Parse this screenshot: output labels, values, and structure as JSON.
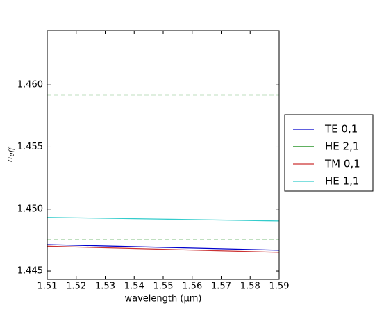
{
  "chart_data": {
    "type": "line",
    "xlabel": "wavelength (μm)",
    "ylabel": {
      "base": "n",
      "sub": "eff"
    },
    "x": [
      1.51,
      1.55,
      1.59
    ],
    "series": [
      {
        "name": "TE 0,1",
        "color": "#0000cc",
        "values": [
          1.44713,
          1.44691,
          1.44669
        ]
      },
      {
        "name": "HE 2,1",
        "color": "#008000",
        "values": [
          null,
          null,
          null
        ]
      },
      {
        "name": "TM 0,1",
        "color": "#cc3333",
        "values": [
          1.447,
          1.44676,
          1.44652
        ]
      },
      {
        "name": "HE 1,1",
        "color": "#33cccc",
        "values": [
          1.44933,
          1.44919,
          1.44904
        ]
      }
    ],
    "hlines": [
      {
        "value": 1.4592,
        "color": "#008000",
        "style": "dashed"
      },
      {
        "value": 1.4475,
        "color": "#008000",
        "style": "dashed"
      }
    ],
    "xlim": [
      1.51,
      1.59
    ],
    "ylim": [
      1.44433,
      1.46438
    ],
    "xticks": [
      1.51,
      1.52,
      1.53,
      1.54,
      1.55,
      1.56,
      1.57,
      1.58,
      1.59
    ],
    "yticks": [
      1.445,
      {
        "value": 1.45,
        "label": "1.450"
      },
      1.455,
      {
        "value": 1.46,
        "label": "1.460"
      }
    ],
    "grid": false,
    "legend": "right"
  }
}
